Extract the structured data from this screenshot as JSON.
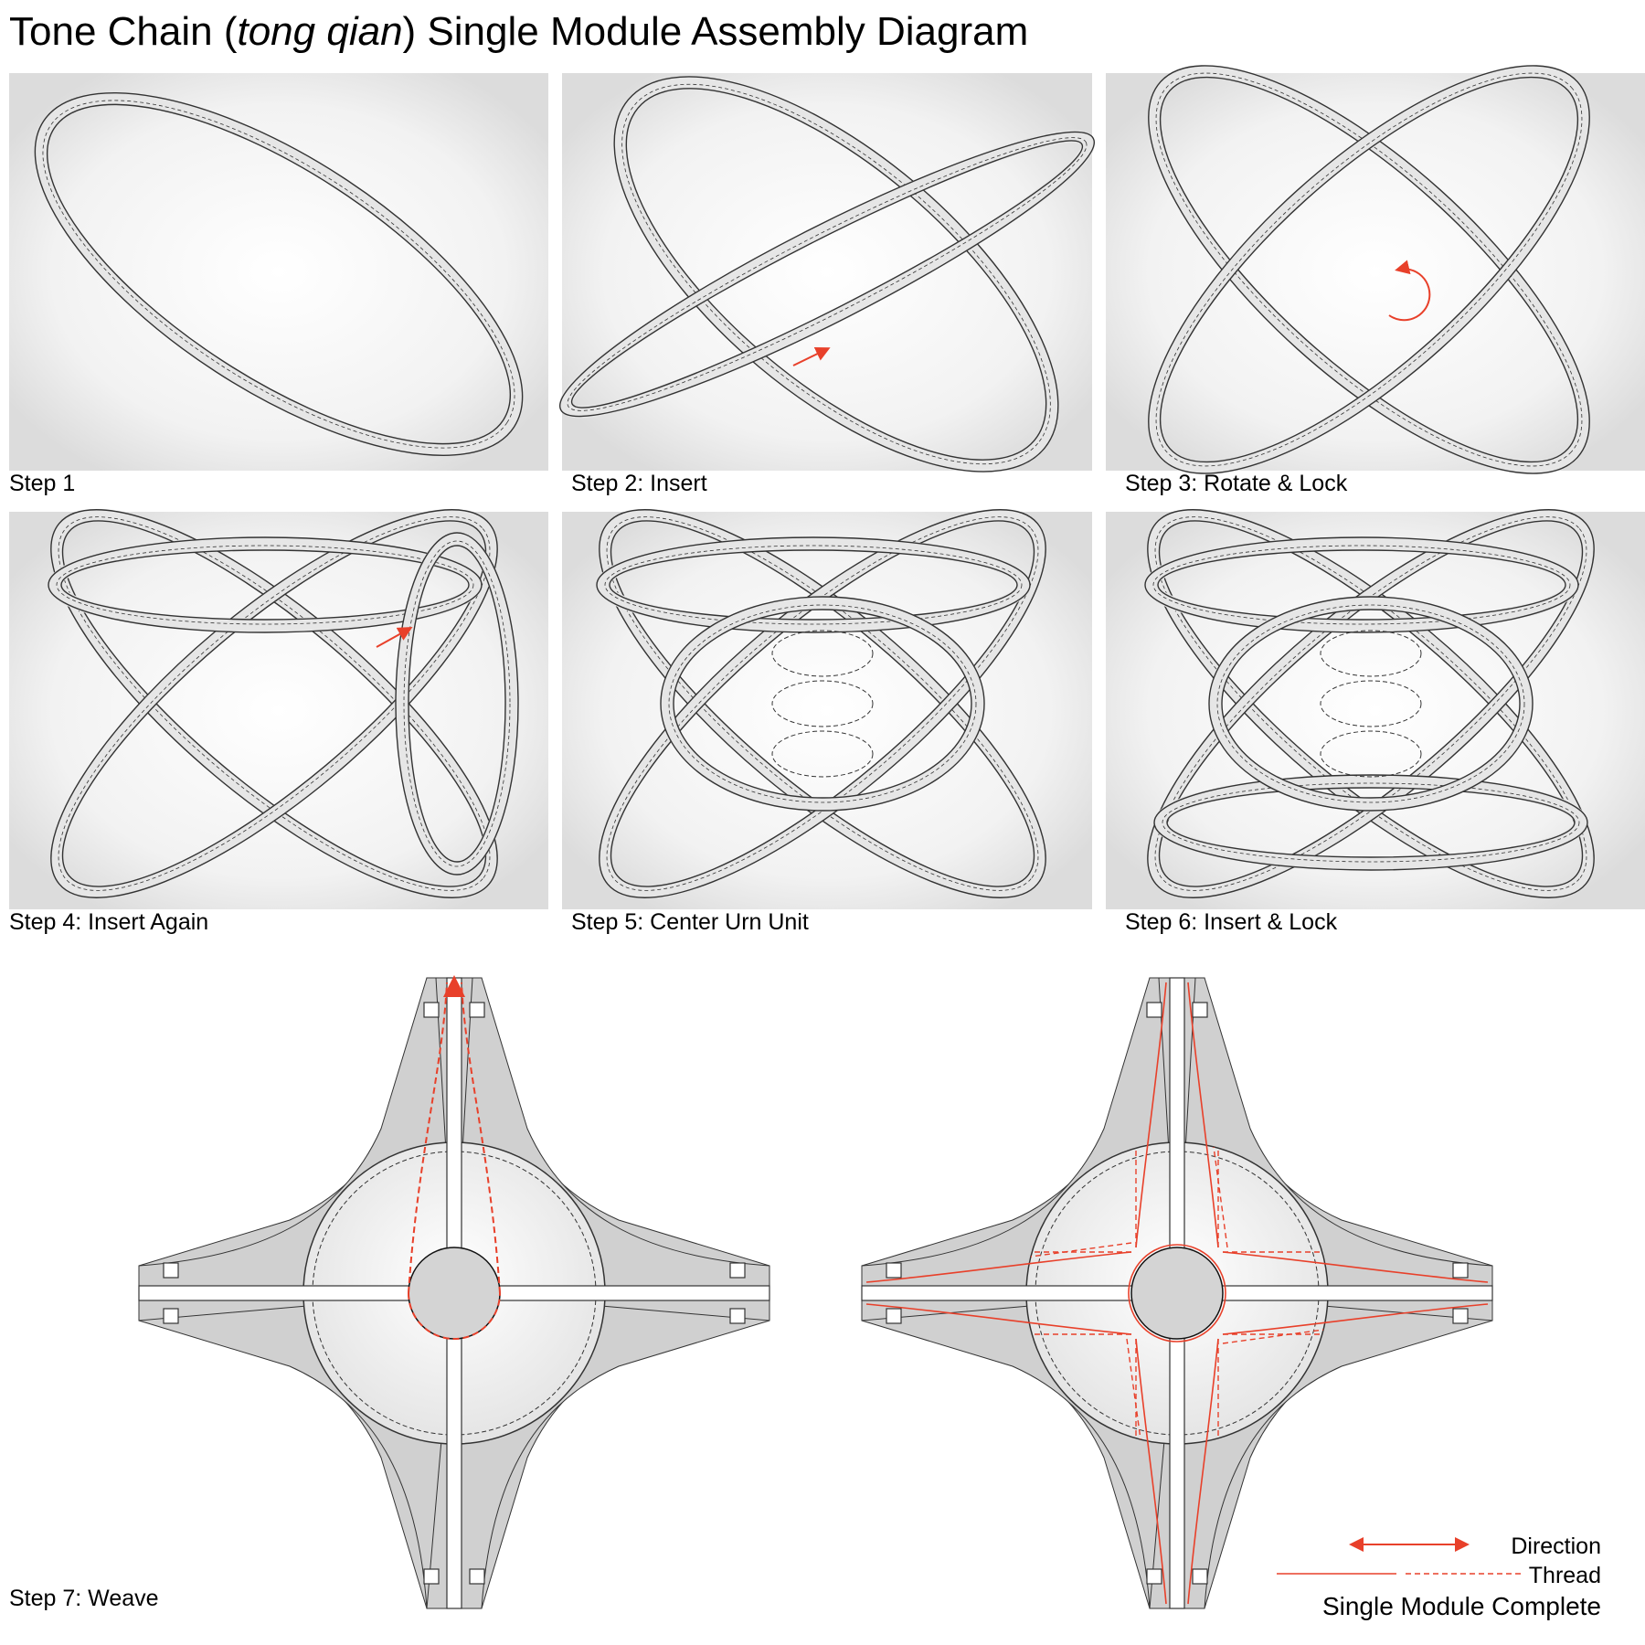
{
  "title": {
    "main_a": "Tone Chain (",
    "italic": "tong qian",
    "main_b": ") Single Module Assembly Diagram"
  },
  "steps": [
    {
      "label": "Step 1"
    },
    {
      "label": "Step 2: Insert"
    },
    {
      "label": "Step 3: Rotate & Lock"
    },
    {
      "label": "Step 4: Insert Again"
    },
    {
      "label": "Step 5: Center Urn Unit"
    },
    {
      "label": "Step 6: Insert & Lock"
    },
    {
      "label": "Step 7: Weave"
    }
  ],
  "legend": {
    "direction": "Direction",
    "thread": "Thread",
    "complete": "Single Module Complete"
  },
  "colors": {
    "accent": "#e8402a",
    "line": "#333333",
    "shade": "#d8d8d8"
  }
}
